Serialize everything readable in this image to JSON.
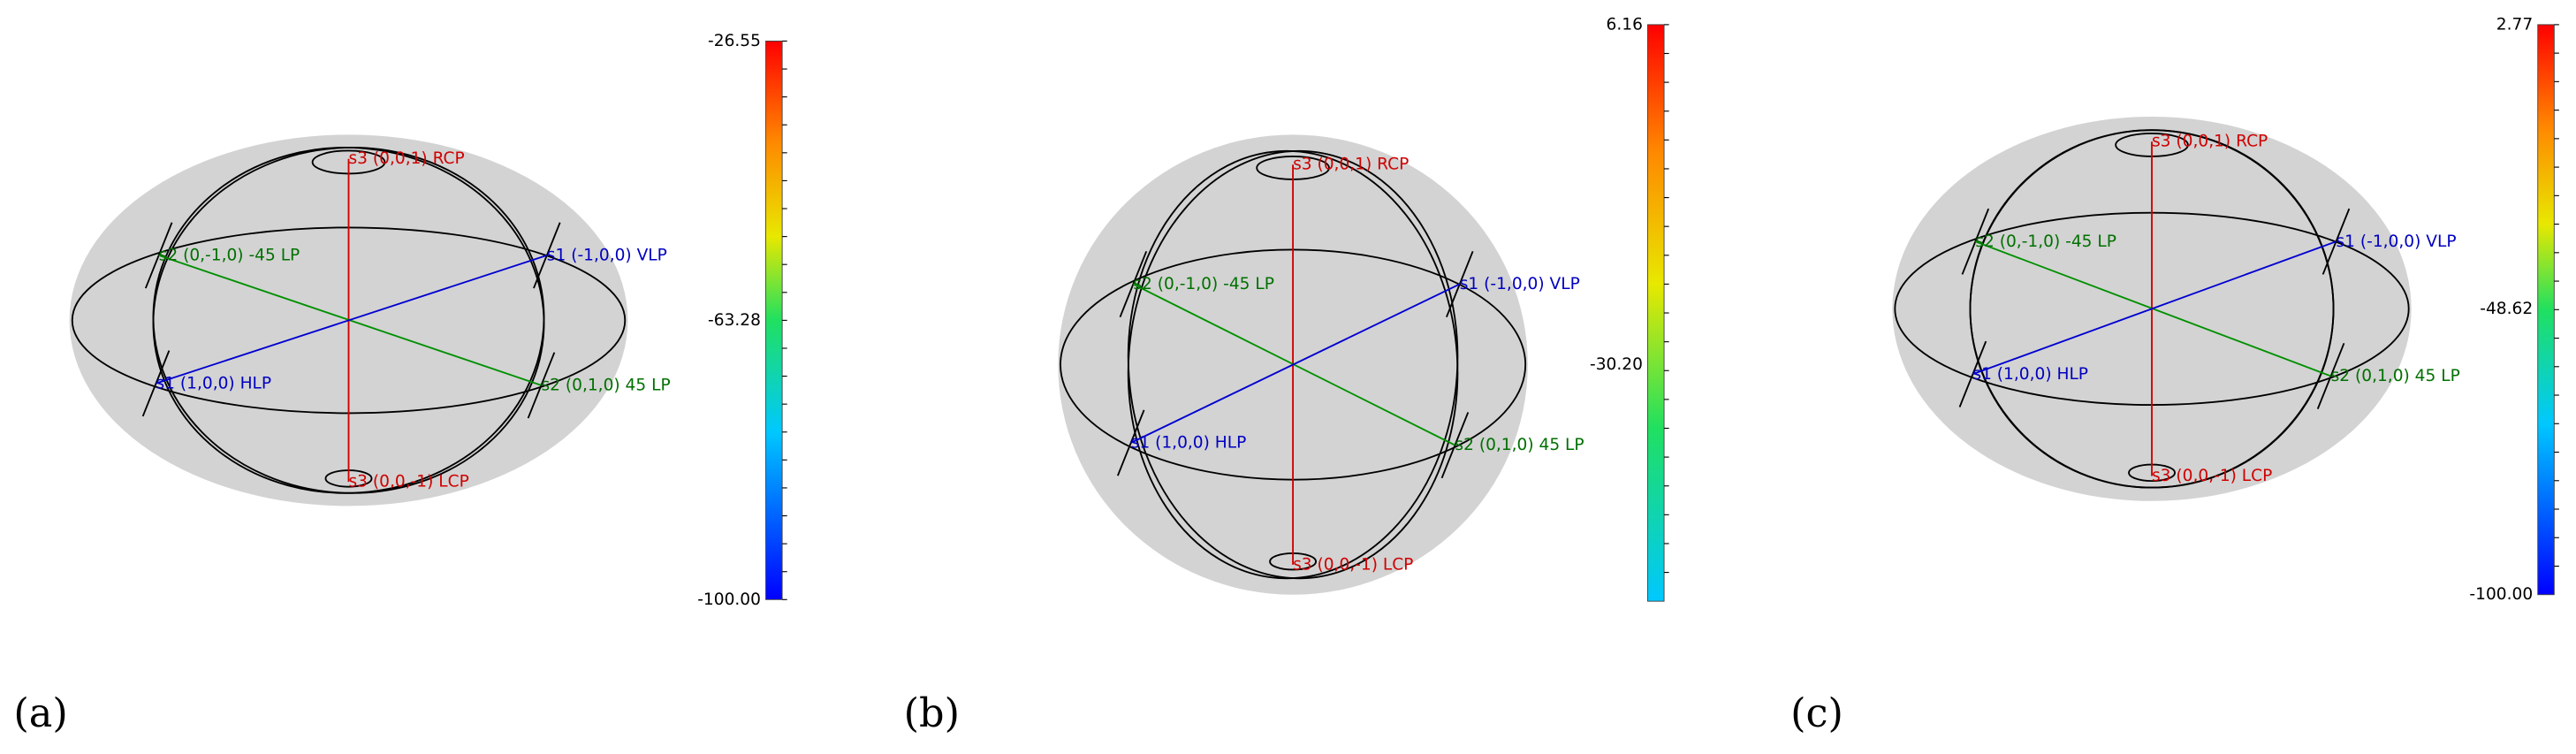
{
  "panels": [
    {
      "label": "(a)",
      "points": [
        "s3 (0,0,1) RCP",
        "s3 (0,0,-1) LCP",
        "s2 (0,-1,0) -45 LP",
        "s1 (-1,0,0) VLP",
        "s1 (1,0,0) HLP",
        "s2 (0,1,0) 45 LP"
      ],
      "colorbar": [
        "-26.55",
        "-63.28",
        "-100.00"
      ]
    },
    {
      "label": "(b)",
      "points": [
        "s3 (0,0,1) RCP",
        "s3 (0,0,-1) LCP",
        "s2 (0,-1,0) -45 LP",
        "s1 (-1,0,0) VLP",
        "s1 (1,0,0) HLP",
        "s2 (0,1,0) 45 LP"
      ],
      "colorbar": [
        "6.16",
        "-30.20"
      ]
    },
    {
      "label": "(c)",
      "points": [
        "s3 (0,0,1) RCP",
        "s3 (0,0,-1) LCP",
        "s2 (0,-1,0) -45 LP",
        "s1 (-1,0,0) VLP",
        "s1 (1,0,0) HLP",
        "s2 (0,1,0) 45 LP"
      ],
      "colorbar": [
        "2.77",
        "-48.62",
        "-100.00"
      ]
    }
  ]
}
